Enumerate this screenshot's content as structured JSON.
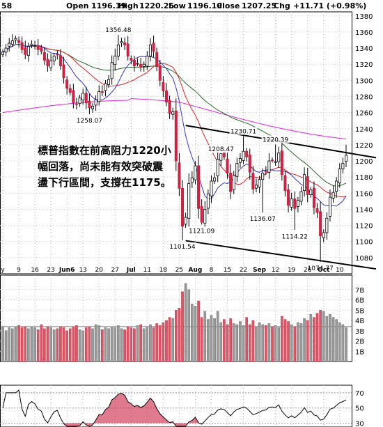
{
  "header": {
    "open_label": "Open",
    "open_value": "1196.19",
    "high_label": "High",
    "high_value": "1220.25",
    "low_label": "Low",
    "low_value": "1196.19",
    "close_label": "Close",
    "close_value": "1207.25",
    "chg_label": "Chg",
    "chg_value": "+11.71 (+0.98%)",
    "corner_value": "58"
  },
  "annotation": {
    "line1": "標普指數在前高阻力1220小",
    "line2": "幅回落，尚未能有效突破震",
    "line3": "盪下行區間，支撐在1175。"
  },
  "colors": {
    "up_candle": "#000000",
    "down_candle": "#cc2244",
    "ma_fast": "#3333cc",
    "ma_mid": "#dd2222",
    "ma_slow": "#226622",
    "ma_long": "#dd22dd",
    "volume_up": "#999999",
    "volume_down": "#dd5566",
    "trendline": "#000000"
  },
  "chart_data": [
    {
      "type": "candlestick",
      "ylim": [
        1060,
        1385
      ],
      "y_ticks": [
        1080,
        1100,
        1120,
        1140,
        1160,
        1180,
        1200,
        1220,
        1240,
        1260,
        1280,
        1300,
        1320,
        1340,
        1360,
        1380
      ],
      "x_ticks": [
        "y",
        "9",
        "16",
        "23",
        "Jun6",
        "13",
        "20",
        "27",
        "Jul",
        "11",
        "18",
        "25",
        "Aug",
        "8",
        "15",
        "22",
        "Sep",
        "12",
        "19",
        "26",
        "Oct",
        "10"
      ],
      "bold_ticks": [
        "Jun6",
        "Jul",
        "Aug",
        "Sep",
        "Oct"
      ],
      "price_labels": [
        {
          "label": "1356.48",
          "value": 1356.48
        },
        {
          "label": "1258.07",
          "value": 1258.07
        },
        {
          "label": "1230.71",
          "value": 1230.71
        },
        {
          "label": "1220.39",
          "value": 1220.39
        },
        {
          "label": "1208.47",
          "value": 1208.47
        },
        {
          "label": "1121.09",
          "value": 1121.09
        },
        {
          "label": "1136.07",
          "value": 1136.07
        },
        {
          "label": "1114.22",
          "value": 1114.22
        },
        {
          "label": "1101.54",
          "value": 1101.54
        },
        {
          "label": "1074.77",
          "value": 1074.77
        }
      ],
      "closes": [
        1335,
        1340,
        1346,
        1349,
        1352,
        1347,
        1338,
        1332,
        1342,
        1345,
        1343,
        1338,
        1336,
        1325,
        1318,
        1324,
        1330,
        1332,
        1318,
        1303,
        1290,
        1285,
        1272,
        1270,
        1278,
        1284,
        1272,
        1266,
        1268,
        1276,
        1286,
        1285,
        1296,
        1301,
        1322,
        1330,
        1344,
        1348,
        1344,
        1330,
        1325,
        1318,
        1321,
        1316,
        1320,
        1330,
        1344,
        1336,
        1317,
        1300,
        1287,
        1273,
        1259,
        1261,
        1200,
        1166,
        1119,
        1130,
        1172,
        1179,
        1194,
        1141,
        1124,
        1140,
        1159,
        1175,
        1179,
        1202,
        1209,
        1205,
        1185,
        1162,
        1182,
        1197,
        1203,
        1212,
        1205,
        1186,
        1165,
        1170,
        1177,
        1185,
        1187,
        1200,
        1201,
        1199,
        1210,
        1183,
        1163,
        1145,
        1153,
        1141,
        1151,
        1162,
        1183,
        1158,
        1164,
        1142,
        1136,
        1107,
        1111,
        1129,
        1155,
        1161,
        1175,
        1190,
        1197,
        1207
      ]
    },
    {
      "type": "bar",
      "name": "volume",
      "ylim": [
        0,
        8
      ],
      "y_ticks": [
        "1B",
        "2B",
        "3B",
        "4B",
        "5B",
        "6B",
        "7B"
      ],
      "values": [
        3.4,
        3.0,
        3.3,
        3.2,
        3.4,
        3.5,
        3.3,
        3.4,
        3.2,
        3.4,
        3.3,
        3.1,
        3.6,
        3.2,
        3.4,
        3.3,
        3.1,
        3.2,
        3.4,
        3.3,
        3.0,
        3.2,
        3.4,
        3.5,
        3.1,
        3.0,
        3.3,
        3.4,
        3.2,
        3.6,
        3.5,
        3.1,
        3.3,
        3.2,
        3.4,
        3.3,
        3.5,
        3.2,
        3.1,
        3.4,
        3.3,
        3.2,
        3.5,
        3.6,
        3.2,
        3.4,
        3.6,
        3.3,
        3.7,
        3.5,
        3.8,
        4.0,
        4.3,
        4.2,
        5.0,
        5.2,
        6.8,
        7.6,
        7.0,
        5.6,
        5.4,
        5.9,
        4.3,
        4.9,
        4.1,
        4.5,
        4.2,
        4.9,
        3.8,
        4.1,
        3.6,
        4.2,
        3.7,
        3.6,
        3.9,
        3.5,
        4.3,
        3.6,
        4.0,
        3.4,
        3.8,
        3.6,
        3.5,
        3.7,
        3.4,
        3.5,
        3.3,
        4.4,
        4.1,
        3.9,
        3.6,
        3.4,
        3.8,
        3.7,
        4.2,
        4.0,
        4.6,
        4.3,
        4.7,
        5.0,
        4.9,
        4.4,
        4.6,
        4.3,
        4.1,
        3.8,
        3.6,
        3.3
      ]
    },
    {
      "type": "line",
      "name": "rsi",
      "ylim": [
        25,
        80
      ],
      "y_ticks": [
        30,
        50,
        70
      ]
    }
  ]
}
